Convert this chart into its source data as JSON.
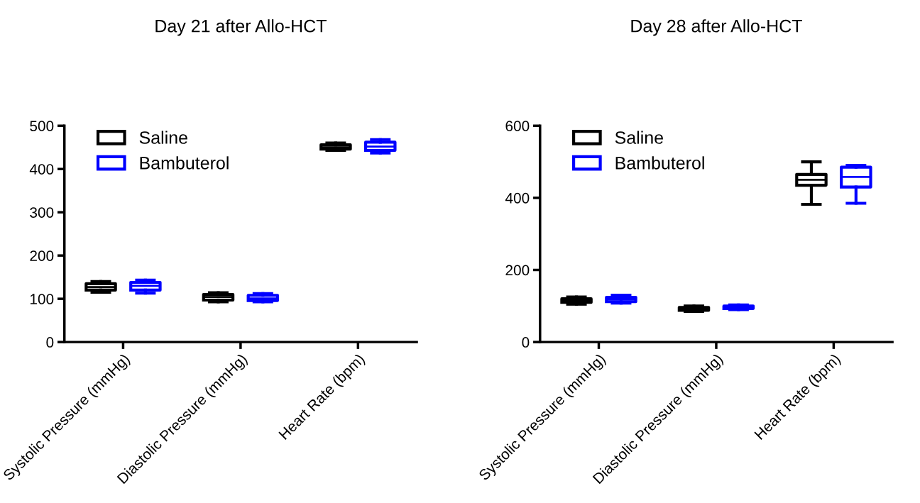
{
  "chart_data": [
    {
      "type": "box",
      "title": "Day 21 after Allo-HCT",
      "categories": [
        "Systolic Pressure (mmHg)",
        "Diastolic Pressure (mmHg)",
        "Heart Rate (bpm)"
      ],
      "ylim": [
        0,
        500
      ],
      "yticks": [
        0,
        100,
        200,
        300,
        400,
        500
      ],
      "legend": "top left",
      "grid": false,
      "series": [
        {
          "name": "Saline",
          "color": "#000000",
          "boxes": [
            {
              "low": 115,
              "q1": 120,
              "median": 127,
              "q3": 135,
              "high": 140
            },
            {
              "low": 93,
              "q1": 97,
              "median": 104,
              "q3": 110,
              "high": 114
            },
            {
              "low": 443,
              "q1": 446,
              "median": 450,
              "q3": 456,
              "high": 460
            }
          ]
        },
        {
          "name": "Bambuterol",
          "color": "#0000ff",
          "boxes": [
            {
              "low": 113,
              "q1": 120,
              "median": 130,
              "q3": 138,
              "high": 143
            },
            {
              "low": 93,
              "q1": 96,
              "median": 101,
              "q3": 108,
              "high": 112
            },
            {
              "low": 437,
              "q1": 443,
              "median": 452,
              "q3": 462,
              "high": 468
            }
          ]
        }
      ]
    },
    {
      "type": "box",
      "title": "Day 28 after Allo-HCT",
      "categories": [
        "Systolic Pressure (mmHg)",
        "Diastolic Pressure (mmHg)",
        "Heart Rate (bpm)"
      ],
      "ylim": [
        0,
        600
      ],
      "yticks": [
        0,
        200,
        400,
        600
      ],
      "legend": "top left",
      "grid": false,
      "series": [
        {
          "name": "Saline",
          "color": "#000000",
          "boxes": [
            {
              "low": 105,
              "q1": 110,
              "median": 115,
              "q3": 120,
              "high": 125
            },
            {
              "low": 85,
              "q1": 88,
              "median": 92,
              "q3": 96,
              "high": 100
            },
            {
              "low": 382,
              "q1": 435,
              "median": 450,
              "q3": 465,
              "high": 500
            }
          ]
        },
        {
          "name": "Bambuterol",
          "color": "#0000ff",
          "boxes": [
            {
              "low": 108,
              "q1": 112,
              "median": 118,
              "q3": 124,
              "high": 130
            },
            {
              "low": 90,
              "q1": 93,
              "median": 96,
              "q3": 100,
              "high": 103
            },
            {
              "low": 385,
              "q1": 430,
              "median": 458,
              "q3": 485,
              "high": 490
            }
          ]
        }
      ]
    }
  ]
}
